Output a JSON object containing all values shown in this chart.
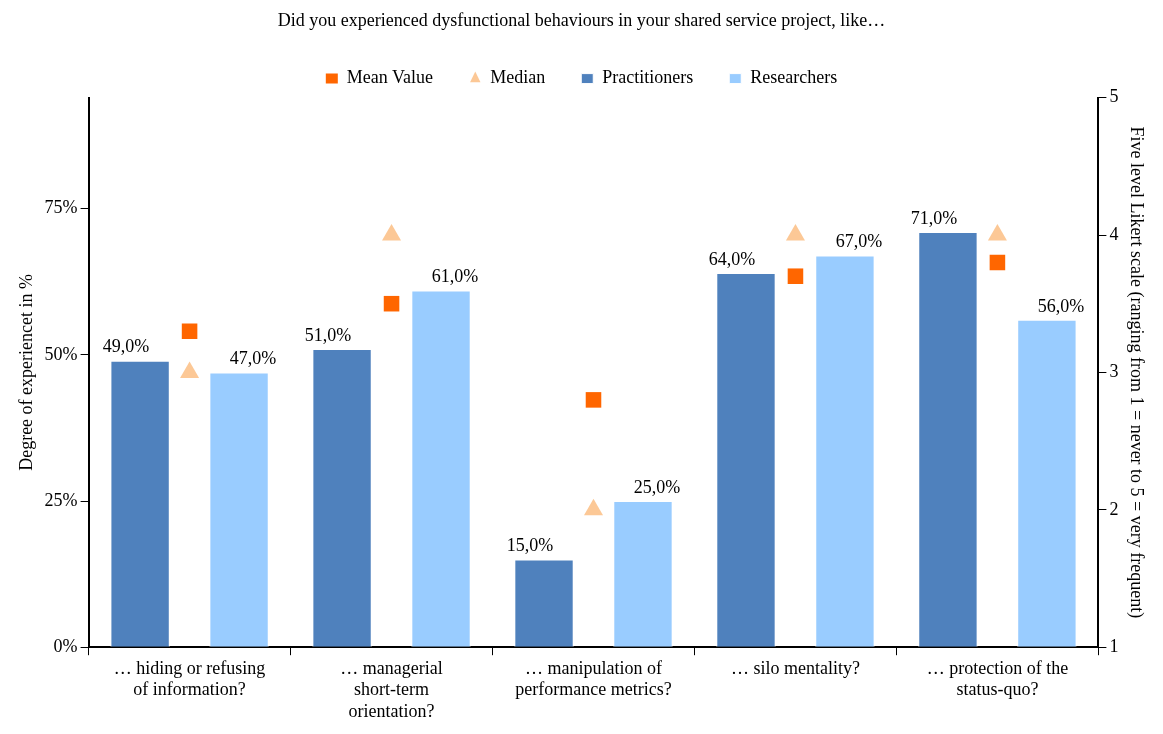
{
  "chart_data": {
    "type": "bar",
    "title": "Did you experienced dysfunctional behaviours in your shared service project, like…",
    "ylabel": "Degree of experiencet in %",
    "y2label": "Five level Likert scale (ranging from 1 = never to 5 = very frequent)",
    "categories": [
      "… hiding or refusing of information?",
      "… managerial short-term orientation?",
      "… manipulation of performance metrics?",
      "… silo mentality?",
      "… protection of the status-quo?"
    ],
    "series": [
      {
        "name": "Practitioners",
        "color": "#4f81bd",
        "values": [
          49,
          51,
          15,
          64,
          71
        ],
        "value_labels": [
          "49,0%",
          "51,0%",
          "15,0%",
          "64,0%",
          "71,0%"
        ]
      },
      {
        "name": "Researchers",
        "color": "#99ccff",
        "values": [
          47,
          61,
          25,
          67,
          56
        ],
        "value_labels": [
          "47,0%",
          "61,0%",
          "25,0%",
          "67,0%",
          "56,0%"
        ]
      },
      {
        "name": "Mean Value",
        "type": "scatter",
        "axis": "y2",
        "marker": "square",
        "color": "#ff6600",
        "x": [
          "… hiding or refusing of information?",
          "… managerial short-term orientation?",
          "… manipulation of performance metrics?",
          "… silo mentality?",
          "… protection of the status-quo?"
        ],
        "values": [
          3.3,
          3.5,
          2.8,
          3.7,
          3.8
        ]
      },
      {
        "name": "Median",
        "type": "scatter",
        "axis": "y2",
        "marker": "triangle",
        "color": "#fcc896",
        "x": [
          "… hiding or refusing of information?",
          "… managerial short-term orientation?",
          "… manipulation of performance metrics?",
          "… silo mentality?",
          "… protection of the status-quo?"
        ],
        "values": [
          3,
          4,
          2,
          4,
          4
        ]
      }
    ],
    "ylim": [
      0,
      94
    ],
    "yticks": [
      {
        "value": 0,
        "label": "0%"
      },
      {
        "value": 25,
        "label": "25%"
      },
      {
        "value": 50,
        "label": "50%"
      },
      {
        "value": 75,
        "label": "75%"
      }
    ],
    "y2lim": [
      1,
      5
    ],
    "y2ticks": [
      1,
      2,
      3,
      4,
      5
    ],
    "grid": false,
    "legend": "top"
  }
}
